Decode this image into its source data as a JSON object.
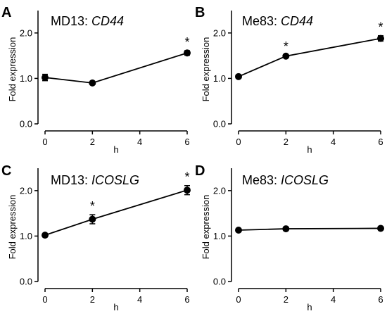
{
  "chart_data": [
    {
      "type": "line",
      "panel": "A",
      "title_plain": "MD13: ",
      "title_italic": "CD44",
      "xlabel": "h",
      "ylabel": "Fold expression",
      "x": [
        0,
        2,
        6
      ],
      "y": [
        1.02,
        0.9,
        1.56
      ],
      "err": [
        0.07,
        0.02,
        0.05
      ],
      "significant": [
        false,
        false,
        true
      ],
      "xticks": [
        "0",
        "2",
        "4",
        "6"
      ],
      "yticks": [
        "0.0",
        "1.0",
        "2.0"
      ],
      "xlim": [
        0,
        6
      ],
      "ylim": [
        0,
        2.4
      ]
    },
    {
      "type": "line",
      "panel": "B",
      "title_plain": "Me83: ",
      "title_italic": "CD44",
      "xlabel": "h",
      "ylabel": "Fold expression",
      "x": [
        0,
        2,
        6
      ],
      "y": [
        1.04,
        1.49,
        1.88
      ],
      "err": [
        0.02,
        0.03,
        0.06
      ],
      "significant": [
        false,
        true,
        true
      ],
      "xticks": [
        "0",
        "2",
        "4",
        "6"
      ],
      "yticks": [
        "0.0",
        "1.0",
        "2.0"
      ],
      "xlim": [
        0,
        6
      ],
      "ylim": [
        0,
        2.4
      ]
    },
    {
      "type": "line",
      "panel": "C",
      "title_plain": "MD13: ",
      "title_italic": "ICOSLG",
      "xlabel": "h",
      "ylabel": "Fold expression",
      "x": [
        0,
        2,
        6
      ],
      "y": [
        1.02,
        1.37,
        2.01
      ],
      "err": [
        0.03,
        0.1,
        0.1
      ],
      "significant": [
        false,
        true,
        true
      ],
      "xticks": [
        "0",
        "2",
        "4",
        "6"
      ],
      "yticks": [
        "0.0",
        "1.0",
        "2.0"
      ],
      "xlim": [
        0,
        6
      ],
      "ylim": [
        0,
        2.4
      ]
    },
    {
      "type": "line",
      "panel": "D",
      "title_plain": "Me83: ",
      "title_italic": "ICOSLG",
      "xlabel": "h",
      "ylabel": "Fold expression",
      "x": [
        0,
        2,
        6
      ],
      "y": [
        1.13,
        1.16,
        1.17
      ],
      "err": [
        0.02,
        0.02,
        0.02
      ],
      "significant": [
        false,
        false,
        false
      ],
      "xticks": [
        "0",
        "2",
        "4",
        "6"
      ],
      "yticks": [
        "0.0",
        "1.0",
        "2.0"
      ],
      "xlim": [
        0,
        6
      ],
      "ylim": [
        0,
        2.4
      ]
    }
  ],
  "significance_marker": "*"
}
